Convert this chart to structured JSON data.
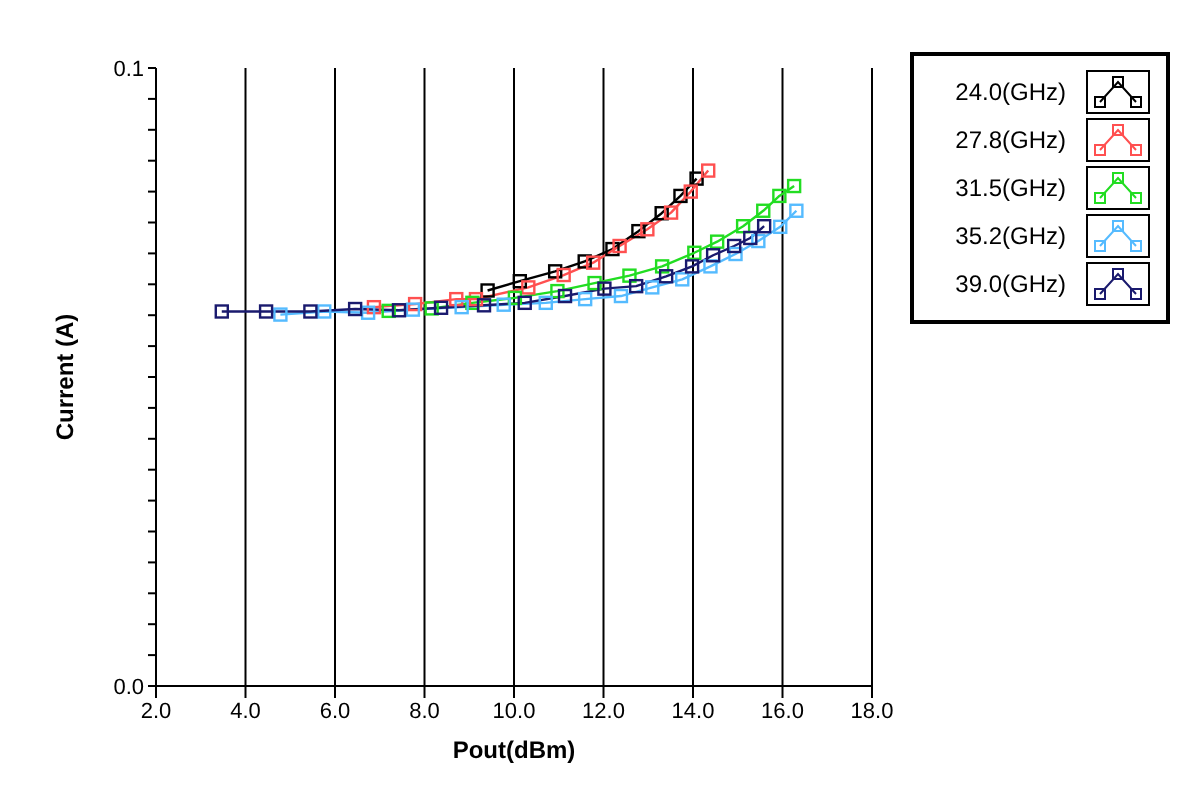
{
  "chart_data": {
    "type": "line",
    "xlabel": "Pout(dBm)",
    "ylabel": "Current (A)",
    "xlim": [
      2,
      18
    ],
    "ylim": [
      0,
      0.1
    ],
    "xticks": [
      {
        "value": 2,
        "label": "2.0"
      },
      {
        "value": 4,
        "label": "4.0"
      },
      {
        "value": 6,
        "label": "6.0"
      },
      {
        "value": 8,
        "label": "8.0"
      },
      {
        "value": 10,
        "label": "10.0"
      },
      {
        "value": 12,
        "label": "12.0"
      },
      {
        "value": 14,
        "label": "14.0"
      },
      {
        "value": 16,
        "label": "16.0"
      },
      {
        "value": 18,
        "label": "18.0"
      }
    ],
    "yticks": [
      {
        "value": 0,
        "label": "0.0"
      },
      {
        "value": 0.005,
        "label": null
      },
      {
        "value": 0.01,
        "label": null
      },
      {
        "value": 0.015,
        "label": null
      },
      {
        "value": 0.02,
        "label": null
      },
      {
        "value": 0.025,
        "label": null
      },
      {
        "value": 0.03,
        "label": null
      },
      {
        "value": 0.035,
        "label": null
      },
      {
        "value": 0.04,
        "label": null
      },
      {
        "value": 0.045,
        "label": null
      },
      {
        "value": 0.05,
        "label": null
      },
      {
        "value": 0.055,
        "label": null
      },
      {
        "value": 0.06,
        "label": null
      },
      {
        "value": 0.065,
        "label": null
      },
      {
        "value": 0.07,
        "label": null
      },
      {
        "value": 0.075,
        "label": null
      },
      {
        "value": 0.08,
        "label": null
      },
      {
        "value": 0.085,
        "label": null
      },
      {
        "value": 0.09,
        "label": null
      },
      {
        "value": 0.095,
        "label": null
      },
      {
        "value": 0.1,
        "label": "0.1"
      }
    ],
    "grid": "x",
    "legend": "top right",
    "marker": "square",
    "line_style": "solid",
    "series": [
      {
        "name": "24.0(GHz)",
        "color": "#000000",
        "x": [
          9.41,
          10.13,
          10.92,
          11.58,
          12.2,
          12.78,
          13.3,
          13.72,
          14.08
        ],
        "values": [
          0.064,
          0.0655,
          0.0671,
          0.0687,
          0.0707,
          0.0736,
          0.0765,
          0.0793,
          0.0821
        ]
      },
      {
        "name": "27.8(GHz)",
        "color": "#ff5050",
        "x": [
          6.87,
          7.79,
          8.71,
          9.15,
          10.32,
          11.11,
          11.77,
          12.36,
          12.98,
          13.51,
          13.95,
          14.34
        ],
        "values": [
          0.0613,
          0.0618,
          0.0626,
          0.0626,
          0.0645,
          0.0665,
          0.0685,
          0.0712,
          0.0739,
          0.0766,
          0.08,
          0.0834
        ]
      },
      {
        "name": "31.5(GHz)",
        "color": "#22dd22",
        "x": [
          7.2,
          8.16,
          9.07,
          10.02,
          10.97,
          11.8,
          12.58,
          13.31,
          14.03,
          14.54,
          15.12,
          15.57,
          15.93,
          16.26
        ],
        "values": [
          0.0607,
          0.0611,
          0.062,
          0.0628,
          0.0639,
          0.0652,
          0.0664,
          0.0679,
          0.0701,
          0.0719,
          0.0744,
          0.0769,
          0.0793,
          0.0809
        ]
      },
      {
        "name": "35.2(GHz)",
        "color": "#55bbff",
        "x": [
          4.78,
          5.76,
          6.74,
          7.74,
          8.83,
          9.77,
          10.71,
          11.59,
          12.39,
          13.09,
          13.76,
          14.39,
          14.95,
          15.46,
          15.95,
          16.31
        ],
        "values": [
          0.0601,
          0.0606,
          0.0604,
          0.0609,
          0.0613,
          0.0617,
          0.062,
          0.0626,
          0.0631,
          0.0645,
          0.0658,
          0.0679,
          0.0699,
          0.072,
          0.0743,
          0.0769
        ]
      },
      {
        "name": "39.0(GHz)",
        "color": "#1a1a6e",
        "x": [
          3.47,
          4.46,
          5.45,
          6.45,
          7.43,
          8.37,
          9.33,
          10.24,
          11.14,
          12.02,
          12.73,
          13.4,
          13.98,
          14.45,
          14.92,
          15.28,
          15.59
        ],
        "values": [
          0.0606,
          0.0606,
          0.0606,
          0.061,
          0.0608,
          0.0612,
          0.0616,
          0.062,
          0.0631,
          0.0643,
          0.0647,
          0.0663,
          0.0679,
          0.0697,
          0.0712,
          0.0725,
          0.0744
        ]
      }
    ]
  }
}
